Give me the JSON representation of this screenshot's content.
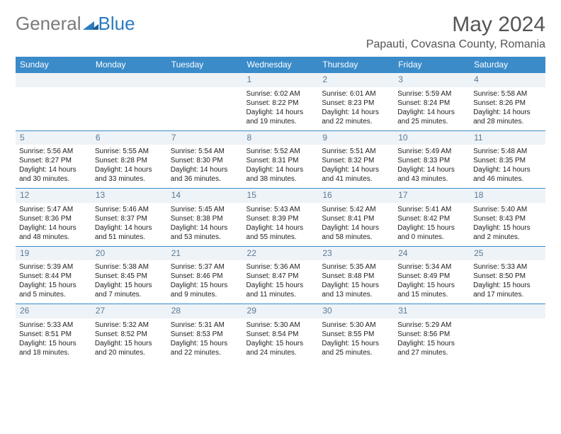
{
  "logo": {
    "part1": "General",
    "part2": "Blue"
  },
  "title": "May 2024",
  "location": "Papauti, Covasna County, Romania",
  "weekdays": [
    "Sunday",
    "Monday",
    "Tuesday",
    "Wednesday",
    "Thursday",
    "Friday",
    "Saturday"
  ],
  "styles": {
    "header_bg": "#3b8bc9",
    "header_text": "#ffffff",
    "daynum_bg": "#eef3f7",
    "daynum_color": "#5a7a95",
    "row_border": "#3b8bc9",
    "body_text": "#222222",
    "title_color": "#555555",
    "logo_gray": "#7a7a7a",
    "logo_blue": "#2b7bbf"
  },
  "weeks": [
    [
      null,
      null,
      null,
      {
        "n": "1",
        "sr": "6:02 AM",
        "ss": "8:22 PM",
        "dl": "14 hours and 19 minutes."
      },
      {
        "n": "2",
        "sr": "6:01 AM",
        "ss": "8:23 PM",
        "dl": "14 hours and 22 minutes."
      },
      {
        "n": "3",
        "sr": "5:59 AM",
        "ss": "8:24 PM",
        "dl": "14 hours and 25 minutes."
      },
      {
        "n": "4",
        "sr": "5:58 AM",
        "ss": "8:26 PM",
        "dl": "14 hours and 28 minutes."
      }
    ],
    [
      {
        "n": "5",
        "sr": "5:56 AM",
        "ss": "8:27 PM",
        "dl": "14 hours and 30 minutes."
      },
      {
        "n": "6",
        "sr": "5:55 AM",
        "ss": "8:28 PM",
        "dl": "14 hours and 33 minutes."
      },
      {
        "n": "7",
        "sr": "5:54 AM",
        "ss": "8:30 PM",
        "dl": "14 hours and 36 minutes."
      },
      {
        "n": "8",
        "sr": "5:52 AM",
        "ss": "8:31 PM",
        "dl": "14 hours and 38 minutes."
      },
      {
        "n": "9",
        "sr": "5:51 AM",
        "ss": "8:32 PM",
        "dl": "14 hours and 41 minutes."
      },
      {
        "n": "10",
        "sr": "5:49 AM",
        "ss": "8:33 PM",
        "dl": "14 hours and 43 minutes."
      },
      {
        "n": "11",
        "sr": "5:48 AM",
        "ss": "8:35 PM",
        "dl": "14 hours and 46 minutes."
      }
    ],
    [
      {
        "n": "12",
        "sr": "5:47 AM",
        "ss": "8:36 PM",
        "dl": "14 hours and 48 minutes."
      },
      {
        "n": "13",
        "sr": "5:46 AM",
        "ss": "8:37 PM",
        "dl": "14 hours and 51 minutes."
      },
      {
        "n": "14",
        "sr": "5:45 AM",
        "ss": "8:38 PM",
        "dl": "14 hours and 53 minutes."
      },
      {
        "n": "15",
        "sr": "5:43 AM",
        "ss": "8:39 PM",
        "dl": "14 hours and 55 minutes."
      },
      {
        "n": "16",
        "sr": "5:42 AM",
        "ss": "8:41 PM",
        "dl": "14 hours and 58 minutes."
      },
      {
        "n": "17",
        "sr": "5:41 AM",
        "ss": "8:42 PM",
        "dl": "15 hours and 0 minutes."
      },
      {
        "n": "18",
        "sr": "5:40 AM",
        "ss": "8:43 PM",
        "dl": "15 hours and 2 minutes."
      }
    ],
    [
      {
        "n": "19",
        "sr": "5:39 AM",
        "ss": "8:44 PM",
        "dl": "15 hours and 5 minutes."
      },
      {
        "n": "20",
        "sr": "5:38 AM",
        "ss": "8:45 PM",
        "dl": "15 hours and 7 minutes."
      },
      {
        "n": "21",
        "sr": "5:37 AM",
        "ss": "8:46 PM",
        "dl": "15 hours and 9 minutes."
      },
      {
        "n": "22",
        "sr": "5:36 AM",
        "ss": "8:47 PM",
        "dl": "15 hours and 11 minutes."
      },
      {
        "n": "23",
        "sr": "5:35 AM",
        "ss": "8:48 PM",
        "dl": "15 hours and 13 minutes."
      },
      {
        "n": "24",
        "sr": "5:34 AM",
        "ss": "8:49 PM",
        "dl": "15 hours and 15 minutes."
      },
      {
        "n": "25",
        "sr": "5:33 AM",
        "ss": "8:50 PM",
        "dl": "15 hours and 17 minutes."
      }
    ],
    [
      {
        "n": "26",
        "sr": "5:33 AM",
        "ss": "8:51 PM",
        "dl": "15 hours and 18 minutes."
      },
      {
        "n": "27",
        "sr": "5:32 AM",
        "ss": "8:52 PM",
        "dl": "15 hours and 20 minutes."
      },
      {
        "n": "28",
        "sr": "5:31 AM",
        "ss": "8:53 PM",
        "dl": "15 hours and 22 minutes."
      },
      {
        "n": "29",
        "sr": "5:30 AM",
        "ss": "8:54 PM",
        "dl": "15 hours and 24 minutes."
      },
      {
        "n": "30",
        "sr": "5:30 AM",
        "ss": "8:55 PM",
        "dl": "15 hours and 25 minutes."
      },
      {
        "n": "31",
        "sr": "5:29 AM",
        "ss": "8:56 PM",
        "dl": "15 hours and 27 minutes."
      },
      null
    ]
  ],
  "labels": {
    "sunrise": "Sunrise: ",
    "sunset": "Sunset: ",
    "daylight": "Daylight: "
  }
}
